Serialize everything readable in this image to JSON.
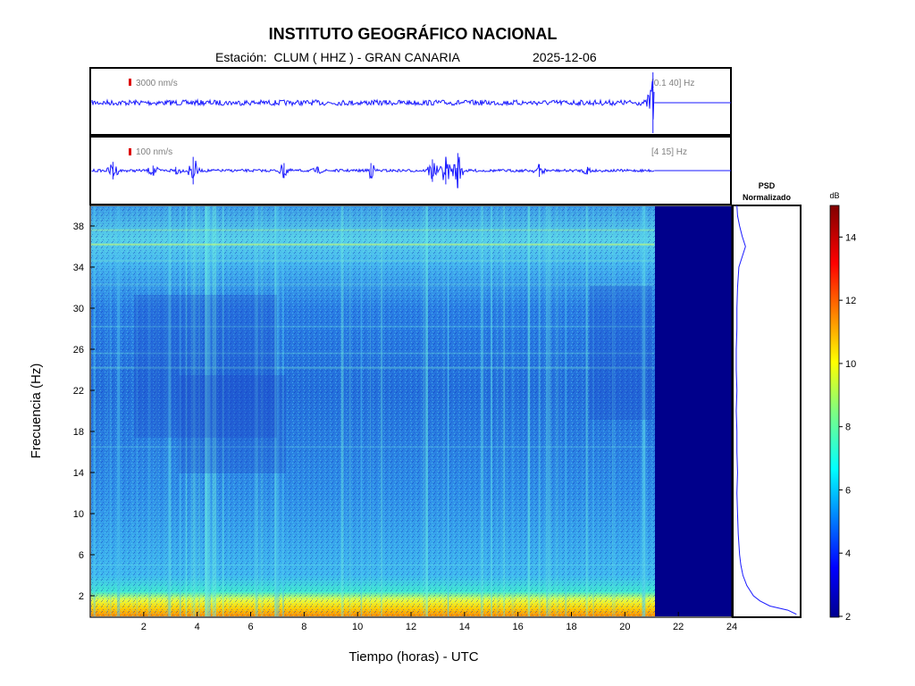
{
  "header": {
    "title": "INSTITUTO GEOGRÁFICO NACIONAL",
    "station": "Estación:  CLUM ( HHZ ) - GRAN CANARIA",
    "date": "2025-12-06"
  },
  "chart_data": [
    {
      "type": "line",
      "panel": "seismogram-broadband",
      "scale_label": "3000 nm/s",
      "band_label": "[0.1 40] Hz",
      "x_range": [
        0,
        24
      ],
      "data_end_hour": 21.1,
      "events": [
        {
          "x": 21.05,
          "amplitude": 1.0
        }
      ]
    },
    {
      "type": "line",
      "panel": "seismogram-filtered",
      "scale_label": "100 nm/s",
      "band_label": "[4 15] Hz",
      "x_range": [
        0,
        24
      ],
      "data_end_hour": 21.1,
      "events": [
        {
          "x": 0.85,
          "amplitude": 0.35
        },
        {
          "x": 2.35,
          "amplitude": 0.2
        },
        {
          "x": 3.2,
          "amplitude": 0.15
        },
        {
          "x": 3.85,
          "amplitude": 0.55
        },
        {
          "x": 7.25,
          "amplitude": 0.3
        },
        {
          "x": 8.5,
          "amplitude": 0.1
        },
        {
          "x": 10.5,
          "amplitude": 0.3
        },
        {
          "x": 12.8,
          "amplitude": 0.45
        },
        {
          "x": 13.3,
          "amplitude": 0.55
        },
        {
          "x": 13.75,
          "amplitude": 0.7
        },
        {
          "x": 16.8,
          "amplitude": 0.25
        },
        {
          "x": 18.6,
          "amplitude": 0.15
        }
      ]
    },
    {
      "type": "heatmap",
      "panel": "spectrogram",
      "xlabel": "Tiempo (horas) - UTC",
      "ylabel": "Frecuencia  (Hz)",
      "x_range": [
        0,
        24
      ],
      "y_range": [
        0,
        40
      ],
      "x_ticks": [
        "2",
        "4",
        "6",
        "8",
        "10",
        "12",
        "14",
        "16",
        "18",
        "20",
        "22",
        "24"
      ],
      "y_ticks": [
        "2",
        "6",
        "10",
        "14",
        "18",
        "22",
        "26",
        "30",
        "34",
        "38"
      ],
      "data_end_hour": 21.1,
      "colormap": "jet"
    },
    {
      "type": "line",
      "panel": "psd",
      "title": "PSD\nNormalizado",
      "title_line1": "PSD",
      "title_line2": "Normalizado",
      "y_range": [
        0,
        40
      ],
      "x_range": [
        0,
        1
      ],
      "points": [
        {
          "f": 0.2,
          "p": 0.95
        },
        {
          "f": 0.6,
          "p": 0.82
        },
        {
          "f": 1.0,
          "p": 0.55
        },
        {
          "f": 1.5,
          "p": 0.4
        },
        {
          "f": 2.0,
          "p": 0.3
        },
        {
          "f": 3.0,
          "p": 0.2
        },
        {
          "f": 4.0,
          "p": 0.14
        },
        {
          "f": 5.0,
          "p": 0.11
        },
        {
          "f": 6.0,
          "p": 0.09
        },
        {
          "f": 8.0,
          "p": 0.07
        },
        {
          "f": 10.0,
          "p": 0.06
        },
        {
          "f": 12.0,
          "p": 0.05
        },
        {
          "f": 14.0,
          "p": 0.06
        },
        {
          "f": 16.0,
          "p": 0.05
        },
        {
          "f": 18.0,
          "p": 0.05
        },
        {
          "f": 20.0,
          "p": 0.04
        },
        {
          "f": 22.0,
          "p": 0.05
        },
        {
          "f": 24.0,
          "p": 0.04
        },
        {
          "f": 26.0,
          "p": 0.04
        },
        {
          "f": 28.0,
          "p": 0.05
        },
        {
          "f": 30.0,
          "p": 0.05
        },
        {
          "f": 32.0,
          "p": 0.06
        },
        {
          "f": 34.0,
          "p": 0.08
        },
        {
          "f": 35.0,
          "p": 0.13
        },
        {
          "f": 36.0,
          "p": 0.18
        },
        {
          "f": 37.0,
          "p": 0.13
        },
        {
          "f": 38.0,
          "p": 0.09
        },
        {
          "f": 39.0,
          "p": 0.06
        },
        {
          "f": 40.0,
          "p": 0.05
        }
      ]
    },
    {
      "type": "heatmap",
      "panel": "colorbar",
      "label": "dB",
      "range": [
        2,
        15
      ],
      "ticks": [
        "2",
        "4",
        "6",
        "8",
        "10",
        "12",
        "14"
      ]
    }
  ],
  "colors": {
    "trace": "#1a1aff",
    "scale_bar": "#dd0000",
    "no_data": "#00008b",
    "annotation_gray": "#808080"
  }
}
